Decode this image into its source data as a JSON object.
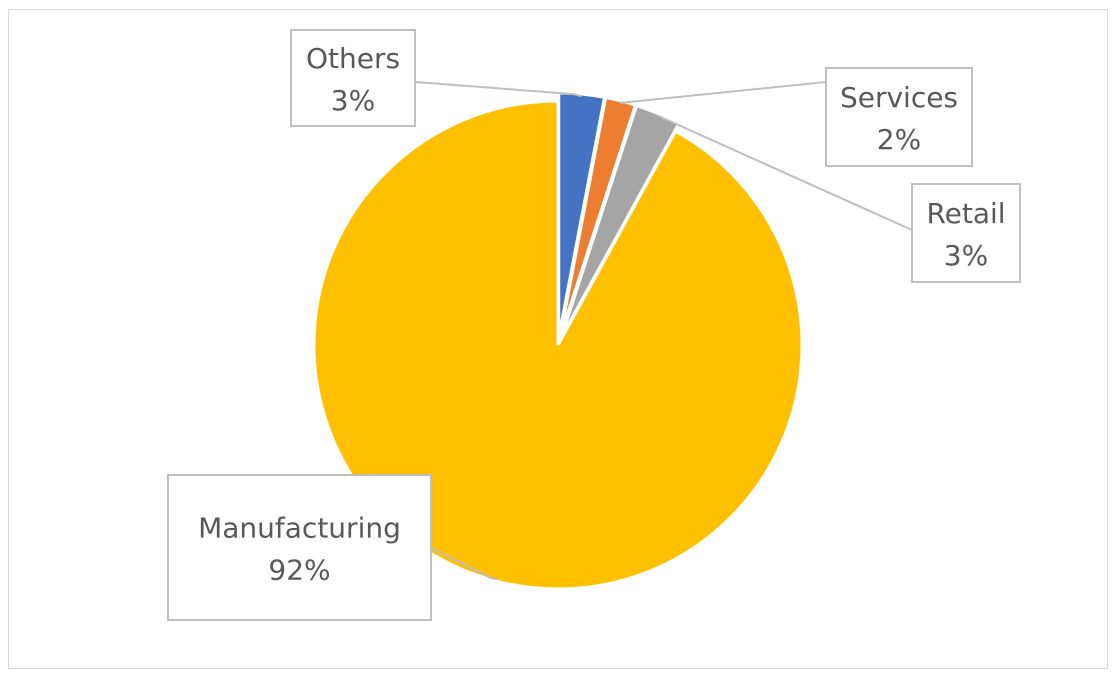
{
  "chart_data": {
    "type": "pie",
    "title": "",
    "legend": "none",
    "slices": [
      {
        "name": "Others",
        "value": 3,
        "label": "3%",
        "color": "#4472C4"
      },
      {
        "name": "Services",
        "value": 2,
        "label": "2%",
        "color": "#ED7D31"
      },
      {
        "name": "Retail",
        "value": 3,
        "label": "3%",
        "color": "#A5A5A5"
      },
      {
        "name": "Manufacturing",
        "value": 92,
        "label": "92%",
        "color": "#FFC000"
      }
    ]
  }
}
